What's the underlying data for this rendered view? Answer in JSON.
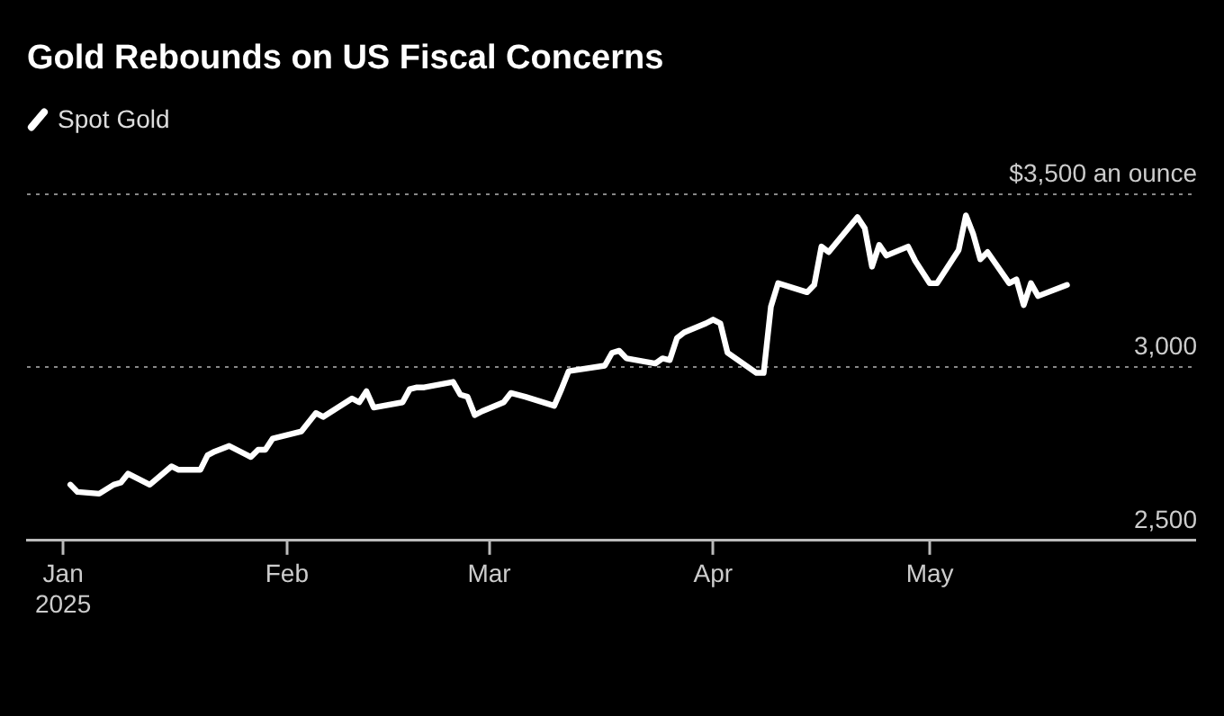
{
  "chart_data": {
    "type": "line",
    "title": "Gold Rebounds on US Fiscal Concerns",
    "legend": "top left",
    "grid": "y",
    "x": [
      "2025-01-02",
      "2025-01-03",
      "2025-01-06",
      "2025-01-08",
      "2025-01-09",
      "2025-01-10",
      "2025-01-13",
      "2025-01-16",
      "2025-01-17",
      "2025-01-20",
      "2025-01-21",
      "2025-01-22",
      "2025-01-24",
      "2025-01-27",
      "2025-01-28",
      "2025-01-29",
      "2025-01-30",
      "2025-02-03",
      "2025-02-05",
      "2025-02-06",
      "2025-02-10",
      "2025-02-11",
      "2025-02-12",
      "2025-02-13",
      "2025-02-17",
      "2025-02-18",
      "2025-02-19",
      "2025-02-20",
      "2025-02-24",
      "2025-02-25",
      "2025-02-26",
      "2025-02-27",
      "2025-02-28",
      "2025-03-03",
      "2025-03-04",
      "2025-03-06",
      "2025-03-10",
      "2025-03-11",
      "2025-03-12",
      "2025-03-17",
      "2025-03-18",
      "2025-03-19",
      "2025-03-20",
      "2025-03-24",
      "2025-03-25",
      "2025-03-26",
      "2025-03-27",
      "2025-03-28",
      "2025-03-31",
      "2025-04-01",
      "2025-04-02",
      "2025-04-03",
      "2025-04-07",
      "2025-04-08",
      "2025-04-09",
      "2025-04-10",
      "2025-04-14",
      "2025-04-15",
      "2025-04-16",
      "2025-04-17",
      "2025-04-21",
      "2025-04-22",
      "2025-04-23",
      "2025-04-24",
      "2025-04-25",
      "2025-04-28",
      "2025-04-29",
      "2025-05-01",
      "2025-05-02",
      "2025-05-05",
      "2025-05-06",
      "2025-05-07",
      "2025-05-08",
      "2025-05-09",
      "2025-05-12",
      "2025-05-13",
      "2025-05-14",
      "2025-05-15",
      "2025-05-16",
      "2025-05-20"
    ],
    "series": [
      {
        "name": "Spot Gold",
        "color": "#ffffff",
        "values": [
          2661,
          2640,
          2635,
          2661,
          2667,
          2693,
          2661,
          2714,
          2704,
          2704,
          2746,
          2757,
          2773,
          2741,
          2762,
          2762,
          2794,
          2815,
          2868,
          2857,
          2910,
          2899,
          2931,
          2884,
          2899,
          2937,
          2942,
          2942,
          2958,
          2921,
          2915,
          2862,
          2873,
          2899,
          2926,
          2915,
          2889,
          2937,
          2989,
          3005,
          3042,
          3048,
          3026,
          3011,
          3026,
          3021,
          3085,
          3101,
          3127,
          3138,
          3127,
          3042,
          2984,
          2984,
          3175,
          3243,
          3217,
          3238,
          3349,
          3333,
          3434,
          3402,
          3291,
          3354,
          3323,
          3349,
          3307,
          3243,
          3243,
          3339,
          3439,
          3386,
          3312,
          3333,
          3243,
          3254,
          3180,
          3243,
          3206,
          3238
        ]
      }
    ],
    "xlim": [
      "2024-12-27",
      "2025-06-07"
    ],
    "xticks": [
      {
        "value": "2025-01-01",
        "label": "Jan\n2025"
      },
      {
        "value": "2025-02-01",
        "label": "Feb"
      },
      {
        "value": "2025-03-01",
        "label": "Mar"
      },
      {
        "value": "2025-04-01",
        "label": "Apr"
      },
      {
        "value": "2025-05-01",
        "label": "May"
      }
    ],
    "ylim": [
      2500,
      3500
    ],
    "yticks": [
      {
        "value": 2500,
        "label": "2,500"
      },
      {
        "value": 3000,
        "label": "3,000"
      },
      {
        "value": 3500,
        "label": "$3,500 an ounce"
      }
    ],
    "marker": "none",
    "line_style": "solid"
  }
}
